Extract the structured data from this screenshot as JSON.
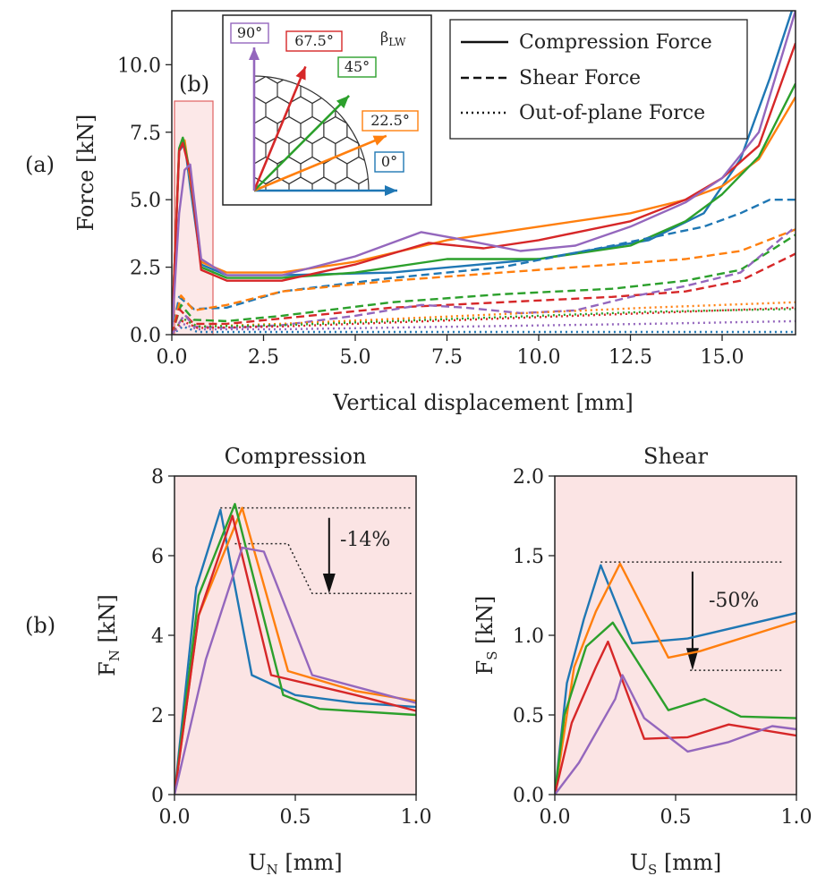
{
  "panel_labels": {
    "a": "(a)",
    "b": "(b)",
    "highlight": "(b)"
  },
  "colors": {
    "0°": "#1f77b4",
    "22.5°": "#ff7f0e",
    "45°": "#2ca02c",
    "67.5°": "#d62728",
    "90°": "#9467bd",
    "shade": "#fbe4e4",
    "highlight_box": "#e06060"
  },
  "inset": {
    "symbol": "β",
    "symbol_sub": "LW",
    "angle_labels": [
      "0°",
      "22.5°",
      "45°",
      "67.5°",
      "90°"
    ],
    "angle_colors": [
      "#1f77b4",
      "#ff7f0e",
      "#2ca02c",
      "#d62728",
      "#9467bd"
    ]
  },
  "legend": {
    "entries": [
      "Compression Force",
      "Shear Force",
      "Out-of-plane Force"
    ],
    "styles": [
      "solid",
      "dashed",
      "dotted"
    ],
    "placement": "top-right"
  },
  "main": {
    "ylabel": "Force [kN]",
    "xlabel": "Vertical displacement [mm]",
    "xticks": [
      "0.0",
      "2.5",
      "5.0",
      "7.5",
      "10.0",
      "12.5",
      "15.0"
    ],
    "yticks": [
      "0.0",
      "2.5",
      "5.0",
      "7.5",
      "10.0"
    ]
  },
  "comp": {
    "title": "Compression",
    "ylabel_main": "F",
    "ylabel_sub": "N",
    "ylabel_unit": " [kN]",
    "xlabel_main": "U",
    "xlabel_sub": "N",
    "xlabel_unit": " [mm]",
    "xticks": [
      "0.0",
      "0.5",
      "1.0"
    ],
    "yticks": [
      "0",
      "2",
      "4",
      "6",
      "8"
    ],
    "annotation": "-14%"
  },
  "shear": {
    "title": "Shear",
    "ylabel_main": "F",
    "ylabel_sub": "S",
    "ylabel_unit": " [kN]",
    "xlabel_main": "U",
    "xlabel_sub": "S",
    "xlabel_unit": " [mm]",
    "xticks": [
      "0.0",
      "0.5",
      "1.0"
    ],
    "yticks": [
      "0.0",
      "0.5",
      "1.0",
      "1.5",
      "2.0"
    ],
    "annotation": "-50%"
  },
  "chart_data": [
    {
      "type": "line",
      "xlabel": "Vertical displacement [mm]",
      "ylabel": "Force [kN]",
      "xlim": [
        0,
        17
      ],
      "ylim": [
        0,
        12
      ],
      "grid": false,
      "series": [
        {
          "name": "0°",
          "kind": "Compression Force",
          "color": "#1f77b4",
          "x": [
            0,
            0.2,
            0.35,
            0.5,
            0.8,
            1.5,
            3,
            6,
            10,
            13,
            14.5,
            15.5,
            16.3,
            16.9
          ],
          "y": [
            0,
            6.8,
            7.1,
            5.5,
            2.6,
            2.2,
            2.2,
            2.3,
            2.8,
            3.5,
            4.5,
            6.5,
            9.5,
            12
          ]
        },
        {
          "name": "22.5°",
          "kind": "Compression Force",
          "color": "#ff7f0e",
          "x": [
            0,
            0.2,
            0.35,
            0.5,
            0.8,
            1.5,
            3,
            5,
            7.5,
            10,
            12.5,
            14,
            15,
            16,
            17
          ],
          "y": [
            0,
            6.9,
            7.2,
            5.8,
            2.7,
            2.3,
            2.3,
            2.7,
            3.5,
            4.0,
            4.5,
            5.0,
            5.5,
            6.5,
            8.8
          ]
        },
        {
          "name": "45°",
          "kind": "Compression Force",
          "color": "#2ca02c",
          "x": [
            0,
            0.2,
            0.3,
            0.5,
            0.8,
            1.5,
            3,
            5,
            7.5,
            10,
            12.5,
            14,
            15,
            16,
            17
          ],
          "y": [
            0,
            6.9,
            7.3,
            6.0,
            2.5,
            2.1,
            2.1,
            2.3,
            2.8,
            2.8,
            3.3,
            4.2,
            5.2,
            6.6,
            9.3
          ]
        },
        {
          "name": "67.5°",
          "kind": "Compression Force",
          "color": "#d62728",
          "x": [
            0,
            0.2,
            0.3,
            0.5,
            0.8,
            1.5,
            3,
            5,
            7,
            8.5,
            10,
            12.5,
            14,
            15,
            16,
            17
          ],
          "y": [
            0,
            6.8,
            7.1,
            6.0,
            2.4,
            2.0,
            2.0,
            2.6,
            3.4,
            3.2,
            3.5,
            4.2,
            5.0,
            5.8,
            7.0,
            10.8
          ]
        },
        {
          "name": "90°",
          "kind": "Compression Force",
          "color": "#9467bd",
          "x": [
            0,
            0.2,
            0.35,
            0.5,
            0.8,
            1.5,
            3,
            5,
            6.8,
            8,
            9.5,
            11,
            12.5,
            14,
            15,
            16,
            17
          ],
          "y": [
            0,
            4.5,
            6.1,
            6.3,
            2.8,
            2.2,
            2.2,
            2.9,
            3.8,
            3.5,
            3.1,
            3.3,
            4.0,
            4.9,
            5.8,
            7.5,
            12
          ]
        },
        {
          "name": "0°",
          "kind": "Shear Force",
          "color": "#1f77b4",
          "x": [
            0,
            0.2,
            0.6,
            1.5,
            3,
            6,
            9,
            12,
            14.5,
            15.5,
            16.3,
            17
          ],
          "y": [
            0,
            1.4,
            0.95,
            1.0,
            1.6,
            2.1,
            2.5,
            3.3,
            4.0,
            4.5,
            5.0,
            5.0
          ]
        },
        {
          "name": "22.5°",
          "kind": "Shear Force",
          "color": "#ff7f0e",
          "x": [
            0,
            0.25,
            0.6,
            1.5,
            3,
            6,
            9,
            12,
            14,
            15.5,
            17
          ],
          "y": [
            0,
            1.45,
            0.9,
            1.1,
            1.6,
            2.0,
            2.3,
            2.6,
            2.8,
            3.1,
            3.9
          ]
        },
        {
          "name": "45°",
          "kind": "Shear Force",
          "color": "#2ca02c",
          "x": [
            0,
            0.25,
            0.6,
            1.5,
            3,
            6,
            9,
            12,
            14,
            15.5,
            17
          ],
          "y": [
            0,
            1.1,
            0.55,
            0.5,
            0.7,
            1.2,
            1.5,
            1.7,
            2.0,
            2.4,
            3.7
          ]
        },
        {
          "name": "67.5°",
          "kind": "Shear Force",
          "color": "#d62728",
          "x": [
            0,
            0.2,
            0.6,
            1.5,
            3,
            6,
            9,
            12,
            14,
            15.5,
            17
          ],
          "y": [
            0,
            0.95,
            0.4,
            0.4,
            0.6,
            1.0,
            1.2,
            1.4,
            1.6,
            2.0,
            3.0
          ]
        },
        {
          "name": "90°",
          "kind": "Shear Force",
          "color": "#9467bd",
          "x": [
            0,
            0.35,
            0.6,
            1.5,
            3,
            5,
            6.8,
            8,
            9.5,
            11,
            12.5,
            14,
            15.5,
            17
          ],
          "y": [
            0,
            0.75,
            0.3,
            0.25,
            0.35,
            0.7,
            1.1,
            1.0,
            0.8,
            0.9,
            1.4,
            1.8,
            2.3,
            4.0
          ]
        },
        {
          "name": "0°",
          "kind": "Out-of-plane Force",
          "color": "#1f77b4",
          "x": [
            0,
            0.3,
            0.7,
            3,
            8,
            13,
            17
          ],
          "y": [
            0,
            0.3,
            0.1,
            0.1,
            0.1,
            0.1,
            0.1
          ]
        },
        {
          "name": "22.5°",
          "kind": "Out-of-plane Force",
          "color": "#ff7f0e",
          "x": [
            0,
            0.3,
            0.7,
            3,
            8,
            13,
            17
          ],
          "y": [
            0,
            0.6,
            0.3,
            0.4,
            0.7,
            1.0,
            1.2
          ]
        },
        {
          "name": "45°",
          "kind": "Out-of-plane Force",
          "color": "#2ca02c",
          "x": [
            0,
            0.3,
            0.7,
            3,
            8,
            13,
            17
          ],
          "y": [
            0,
            0.6,
            0.3,
            0.35,
            0.6,
            0.85,
            0.95
          ]
        },
        {
          "name": "67.5°",
          "kind": "Out-of-plane Force",
          "color": "#d62728",
          "x": [
            0,
            0.3,
            0.7,
            3,
            8,
            13,
            17
          ],
          "y": [
            0,
            0.5,
            0.25,
            0.3,
            0.55,
            0.8,
            1.0
          ]
        },
        {
          "name": "90°",
          "kind": "Out-of-plane Force",
          "color": "#9467bd",
          "x": [
            0,
            0.3,
            0.7,
            3,
            8,
            13,
            17
          ],
          "y": [
            0,
            0.4,
            0.2,
            0.2,
            0.3,
            0.4,
            0.5
          ]
        }
      ]
    },
    {
      "type": "line",
      "title": "Compression",
      "xlabel": "U_N [mm]",
      "ylabel": "F_N [kN]",
      "xlim": [
        0,
        1
      ],
      "ylim": [
        0,
        8
      ],
      "grid": false,
      "annotation": {
        "text": "-14%",
        "upper": 7.2,
        "lower": 5.05,
        "mid": 6.3
      },
      "series": [
        {
          "name": "0°",
          "color": "#1f77b4",
          "x": [
            0,
            0.09,
            0.19,
            0.32,
            0.5,
            0.75,
            1.0
          ],
          "y": [
            0,
            5.2,
            7.15,
            3.0,
            2.5,
            2.3,
            2.2
          ]
        },
        {
          "name": "22.5°",
          "color": "#ff7f0e",
          "x": [
            0,
            0.1,
            0.28,
            0.47,
            0.75,
            1.0
          ],
          "y": [
            0,
            4.5,
            7.2,
            3.1,
            2.6,
            2.35
          ]
        },
        {
          "name": "45°",
          "color": "#2ca02c",
          "x": [
            0,
            0.1,
            0.25,
            0.45,
            0.6,
            1.0
          ],
          "y": [
            0,
            5.0,
            7.3,
            2.5,
            2.15,
            2.0
          ]
        },
        {
          "name": "67.5°",
          "color": "#d62728",
          "x": [
            0,
            0.1,
            0.24,
            0.4,
            0.75,
            1.0
          ],
          "y": [
            0,
            4.5,
            7.0,
            3.0,
            2.5,
            2.1
          ]
        },
        {
          "name": "90°",
          "color": "#9467bd",
          "x": [
            0,
            0.13,
            0.28,
            0.37,
            0.57,
            1.0
          ],
          "y": [
            0,
            3.4,
            6.2,
            6.1,
            3.0,
            2.3
          ]
        }
      ]
    },
    {
      "type": "line",
      "title": "Shear",
      "xlabel": "U_S [mm]",
      "ylabel": "F_S [kN]",
      "xlim": [
        0,
        1
      ],
      "ylim": [
        0,
        2
      ],
      "grid": false,
      "annotation": {
        "text": "-50%",
        "upper": 1.46,
        "lower": 0.78
      },
      "series": [
        {
          "name": "0°",
          "color": "#1f77b4",
          "x": [
            0,
            0.05,
            0.12,
            0.19,
            0.32,
            0.55,
            1.0
          ],
          "y": [
            0,
            0.7,
            1.1,
            1.44,
            0.95,
            0.98,
            1.14
          ]
        },
        {
          "name": "22.5°",
          "color": "#ff7f0e",
          "x": [
            0,
            0.08,
            0.17,
            0.27,
            0.47,
            0.6,
            1.0
          ],
          "y": [
            0,
            0.8,
            1.15,
            1.45,
            0.86,
            0.9,
            1.09
          ]
        },
        {
          "name": "45°",
          "color": "#2ca02c",
          "x": [
            0,
            0.04,
            0.13,
            0.24,
            0.47,
            0.62,
            0.77,
            1.0
          ],
          "y": [
            0,
            0.5,
            0.93,
            1.08,
            0.53,
            0.6,
            0.49,
            0.48
          ]
        },
        {
          "name": "67.5°",
          "color": "#d62728",
          "x": [
            0,
            0.07,
            0.17,
            0.22,
            0.37,
            0.55,
            0.72,
            1.0
          ],
          "y": [
            0,
            0.45,
            0.8,
            0.96,
            0.35,
            0.36,
            0.44,
            0.37
          ]
        },
        {
          "name": "90°",
          "color": "#9467bd",
          "x": [
            0,
            0.1,
            0.25,
            0.28,
            0.37,
            0.55,
            0.72,
            0.9,
            1.0
          ],
          "y": [
            0,
            0.2,
            0.6,
            0.75,
            0.48,
            0.27,
            0.33,
            0.43,
            0.41
          ]
        }
      ]
    }
  ]
}
